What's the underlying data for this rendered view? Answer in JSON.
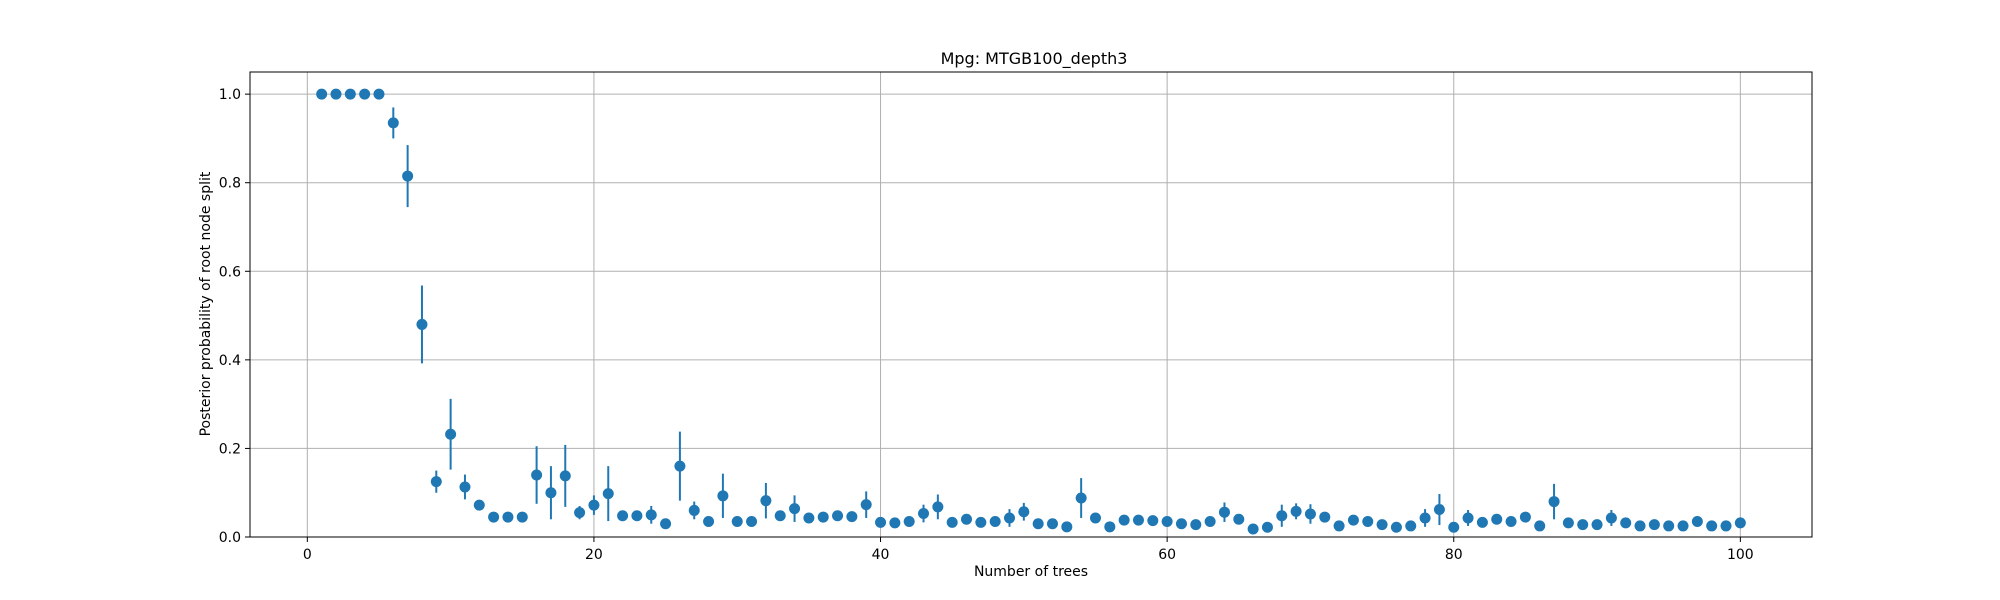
{
  "chart_data": {
    "type": "scatter",
    "title": "Mpg: MTGB100_depth3",
    "xlabel": "Number of trees",
    "ylabel": "Posterior probability of root node split",
    "xlim": [
      -4,
      105
    ],
    "ylim": [
      0,
      1.05
    ],
    "grid": true,
    "x_ticks": [
      0,
      20,
      40,
      60,
      80,
      100
    ],
    "y_ticks": [
      0.0,
      0.2,
      0.4,
      0.6,
      0.8,
      1.0
    ],
    "x_tick_labels": [
      "0",
      "20",
      "40",
      "60",
      "80",
      "100"
    ],
    "y_tick_labels": [
      "0.0",
      "0.2",
      "0.4",
      "0.6",
      "0.8",
      "1.0"
    ],
    "colors": {
      "marker": "#1f77b4",
      "grid": "#b0b0b0",
      "axes": "#000000"
    },
    "series": [
      {
        "name": "posterior",
        "x": [
          1,
          2,
          3,
          4,
          5,
          6,
          7,
          8,
          9,
          10,
          11,
          12,
          13,
          14,
          15,
          16,
          17,
          18,
          19,
          20,
          21,
          22,
          23,
          24,
          25,
          26,
          27,
          28,
          29,
          30,
          31,
          32,
          33,
          34,
          35,
          36,
          37,
          38,
          39,
          40,
          41,
          42,
          43,
          44,
          45,
          46,
          47,
          48,
          49,
          50,
          51,
          52,
          53,
          54,
          55,
          56,
          57,
          58,
          59,
          60,
          61,
          62,
          63,
          64,
          65,
          66,
          67,
          68,
          69,
          70,
          71,
          72,
          73,
          74,
          75,
          76,
          77,
          78,
          79,
          80,
          81,
          82,
          83,
          84,
          85,
          86,
          87,
          88,
          89,
          90,
          91,
          92,
          93,
          94,
          95,
          96,
          97,
          98,
          99,
          100
        ],
        "y": [
          1.0,
          1.0,
          1.0,
          1.0,
          1.0,
          0.935,
          0.815,
          0.48,
          0.125,
          0.232,
          0.113,
          0.072,
          0.045,
          0.045,
          0.045,
          0.14,
          0.1,
          0.138,
          0.055,
          0.072,
          0.098,
          0.048,
          0.048,
          0.05,
          0.03,
          0.16,
          0.06,
          0.035,
          0.093,
          0.035,
          0.035,
          0.082,
          0.048,
          0.064,
          0.043,
          0.045,
          0.048,
          0.046,
          0.073,
          0.033,
          0.032,
          0.035,
          0.053,
          0.068,
          0.033,
          0.04,
          0.033,
          0.035,
          0.043,
          0.057,
          0.03,
          0.03,
          0.023,
          0.088,
          0.043,
          0.023,
          0.038,
          0.038,
          0.037,
          0.035,
          0.03,
          0.028,
          0.035,
          0.056,
          0.04,
          0.018,
          0.022,
          0.048,
          0.058,
          0.052,
          0.045,
          0.025,
          0.038,
          0.035,
          0.028,
          0.022,
          0.025,
          0.043,
          0.062,
          0.022,
          0.043,
          0.033,
          0.04,
          0.035,
          0.045,
          0.025,
          0.08,
          0.032,
          0.028,
          0.028,
          0.043,
          0.032,
          0.025,
          0.028,
          0.025,
          0.025,
          0.035,
          0.025,
          0.025,
          0.032
        ],
        "err": [
          0,
          0,
          0,
          0,
          0,
          0.035,
          0.07,
          0.088,
          0.025,
          0.08,
          0.028,
          0,
          0,
          0,
          0,
          0.065,
          0.06,
          0.07,
          0.015,
          0.022,
          0.062,
          0,
          0,
          0.02,
          0,
          0.078,
          0.02,
          0,
          0.05,
          0,
          0,
          0.04,
          0,
          0.03,
          0,
          0,
          0,
          0,
          0.03,
          0,
          0,
          0,
          0.02,
          0.028,
          0,
          0,
          0,
          0,
          0.02,
          0.02,
          0,
          0,
          0,
          0.045,
          0,
          0,
          0,
          0,
          0,
          0,
          0,
          0,
          0,
          0.022,
          0,
          0,
          0,
          0.025,
          0.018,
          0.022,
          0,
          0,
          0,
          0,
          0,
          0,
          0,
          0.02,
          0.035,
          0,
          0.018,
          0,
          0,
          0,
          0,
          0,
          0.04,
          0,
          0,
          0,
          0.018,
          0,
          0,
          0,
          0,
          0,
          0,
          0,
          0,
          0
        ]
      }
    ]
  }
}
